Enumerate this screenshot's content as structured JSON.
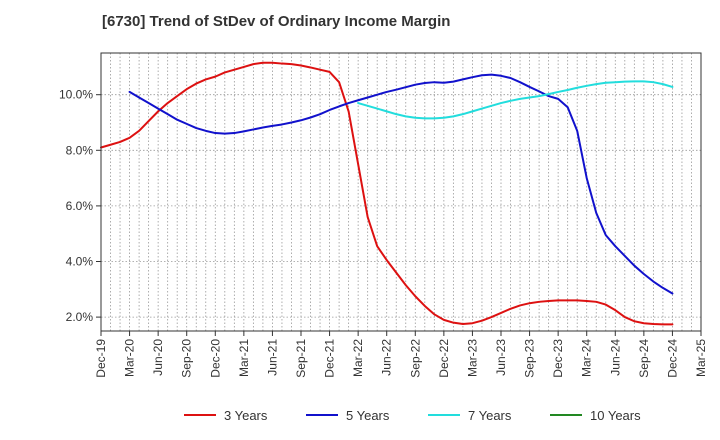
{
  "chart_data": {
    "type": "line",
    "title": "[6730]  Trend of StDev of Ordinary Income Margin",
    "xlabel": "",
    "ylabel": "",
    "ylim": [
      1.5,
      11.5
    ],
    "y_ticks": [
      2.0,
      4.0,
      6.0,
      8.0,
      10.0
    ],
    "y_tick_labels": [
      "2.0%",
      "4.0%",
      "6.0%",
      "8.0%",
      "10.0%"
    ],
    "x_ticks": [
      "Dec-19",
      "Mar-20",
      "Jun-20",
      "Sep-20",
      "Dec-20",
      "Mar-21",
      "Jun-21",
      "Sep-21",
      "Dec-21",
      "Mar-22",
      "Jun-22",
      "Sep-22",
      "Dec-22",
      "Mar-23",
      "Jun-23",
      "Sep-23",
      "Dec-23",
      "Mar-24",
      "Jun-24",
      "Sep-24",
      "Dec-24",
      "Mar-25"
    ],
    "grid": true,
    "legend_position": "bottom",
    "series": [
      {
        "name": "3 Years",
        "color": "#dd1111",
        "x": [
          "Dec-19",
          "Jan-20",
          "Feb-20",
          "Mar-20",
          "Apr-20",
          "May-20",
          "Jun-20",
          "Jul-20",
          "Aug-20",
          "Sep-20",
          "Oct-20",
          "Nov-20",
          "Dec-20",
          "Jan-21",
          "Feb-21",
          "Mar-21",
          "Apr-21",
          "May-21",
          "Jun-21",
          "Jul-21",
          "Aug-21",
          "Sep-21",
          "Oct-21",
          "Nov-21",
          "Dec-21",
          "Jan-22",
          "Feb-22",
          "Mar-22",
          "Apr-22",
          "May-22",
          "Jun-22",
          "Jul-22",
          "Aug-22",
          "Sep-22",
          "Oct-22",
          "Nov-22",
          "Dec-22",
          "Jan-23",
          "Feb-23",
          "Mar-23",
          "Apr-23",
          "May-23",
          "Jun-23",
          "Jul-23",
          "Aug-23",
          "Sep-23",
          "Oct-23",
          "Nov-23",
          "Dec-23",
          "Jan-24",
          "Feb-24",
          "Mar-24",
          "Apr-24",
          "May-24",
          "Jun-24",
          "Jul-24",
          "Aug-24",
          "Sep-24",
          "Oct-24",
          "Nov-24",
          "Dec-24"
        ],
        "values": [
          8.1,
          8.2,
          8.3,
          8.45,
          8.7,
          9.05,
          9.4,
          9.7,
          9.95,
          10.2,
          10.4,
          10.55,
          10.65,
          10.8,
          10.9,
          11.0,
          11.1,
          11.15,
          11.15,
          11.12,
          11.1,
          11.05,
          10.98,
          10.9,
          10.82,
          10.45,
          9.4,
          7.5,
          5.6,
          4.55,
          4.05,
          3.6,
          3.15,
          2.75,
          2.4,
          2.1,
          1.9,
          1.8,
          1.75,
          1.78,
          1.87,
          2.0,
          2.15,
          2.3,
          2.42,
          2.5,
          2.55,
          2.58,
          2.6,
          2.6,
          2.6,
          2.58,
          2.55,
          2.45,
          2.25,
          2.0,
          1.85,
          1.78,
          1.75,
          1.74,
          1.74
        ]
      },
      {
        "name": "5 Years",
        "color": "#1111cc",
        "x": [
          "Mar-20",
          "Apr-20",
          "May-20",
          "Jun-20",
          "Jul-20",
          "Aug-20",
          "Sep-20",
          "Oct-20",
          "Nov-20",
          "Dec-20",
          "Jan-21",
          "Feb-21",
          "Mar-21",
          "Apr-21",
          "May-21",
          "Jun-21",
          "Jul-21",
          "Aug-21",
          "Sep-21",
          "Oct-21",
          "Nov-21",
          "Dec-21",
          "Jan-22",
          "Feb-22",
          "Mar-22",
          "Apr-22",
          "May-22",
          "Jun-22",
          "Jul-22",
          "Aug-22",
          "Sep-22",
          "Oct-22",
          "Nov-22",
          "Dec-22",
          "Jan-23",
          "Feb-23",
          "Mar-23",
          "Apr-23",
          "May-23",
          "Jun-23",
          "Jul-23",
          "Aug-23",
          "Sep-23",
          "Oct-23",
          "Nov-23",
          "Dec-23",
          "Jan-24",
          "Feb-24",
          "Mar-24",
          "Apr-24",
          "May-24",
          "Jun-24",
          "Jul-24",
          "Aug-24",
          "Sep-24",
          "Oct-24",
          "Nov-24",
          "Dec-24"
        ],
        "values": [
          10.1,
          9.9,
          9.7,
          9.5,
          9.3,
          9.1,
          8.95,
          8.8,
          8.7,
          8.62,
          8.6,
          8.62,
          8.68,
          8.75,
          8.82,
          8.88,
          8.93,
          9.0,
          9.08,
          9.18,
          9.3,
          9.45,
          9.58,
          9.7,
          9.8,
          9.9,
          10.0,
          10.1,
          10.18,
          10.27,
          10.36,
          10.42,
          10.45,
          10.43,
          10.47,
          10.55,
          10.63,
          10.7,
          10.72,
          10.68,
          10.6,
          10.45,
          10.28,
          10.12,
          9.95,
          9.85,
          9.55,
          8.7,
          7.0,
          5.75,
          4.95,
          4.55,
          4.2,
          3.85,
          3.55,
          3.28,
          3.05,
          2.85
        ]
      },
      {
        "name": "7 Years",
        "color": "#22dddd",
        "x": [
          "Mar-22",
          "Apr-22",
          "May-22",
          "Jun-22",
          "Jul-22",
          "Aug-22",
          "Sep-22",
          "Oct-22",
          "Nov-22",
          "Dec-22",
          "Jan-23",
          "Feb-23",
          "Mar-23",
          "Apr-23",
          "May-23",
          "Jun-23",
          "Jul-23",
          "Aug-23",
          "Sep-23",
          "Oct-23",
          "Nov-23",
          "Dec-23",
          "Jan-24",
          "Feb-24",
          "Mar-24",
          "Apr-24",
          "May-24",
          "Jun-24",
          "Jul-24",
          "Aug-24",
          "Sep-24",
          "Oct-24",
          "Nov-24",
          "Dec-24"
        ],
        "values": [
          9.7,
          9.6,
          9.5,
          9.4,
          9.3,
          9.22,
          9.17,
          9.15,
          9.15,
          9.17,
          9.22,
          9.3,
          9.4,
          9.5,
          9.6,
          9.7,
          9.78,
          9.85,
          9.9,
          9.95,
          10.02,
          10.1,
          10.17,
          10.25,
          10.32,
          10.38,
          10.43,
          10.45,
          10.47,
          10.48,
          10.48,
          10.45,
          10.38,
          10.28
        ]
      },
      {
        "name": "10 Years",
        "color": "#228822",
        "x": [],
        "values": []
      }
    ]
  }
}
